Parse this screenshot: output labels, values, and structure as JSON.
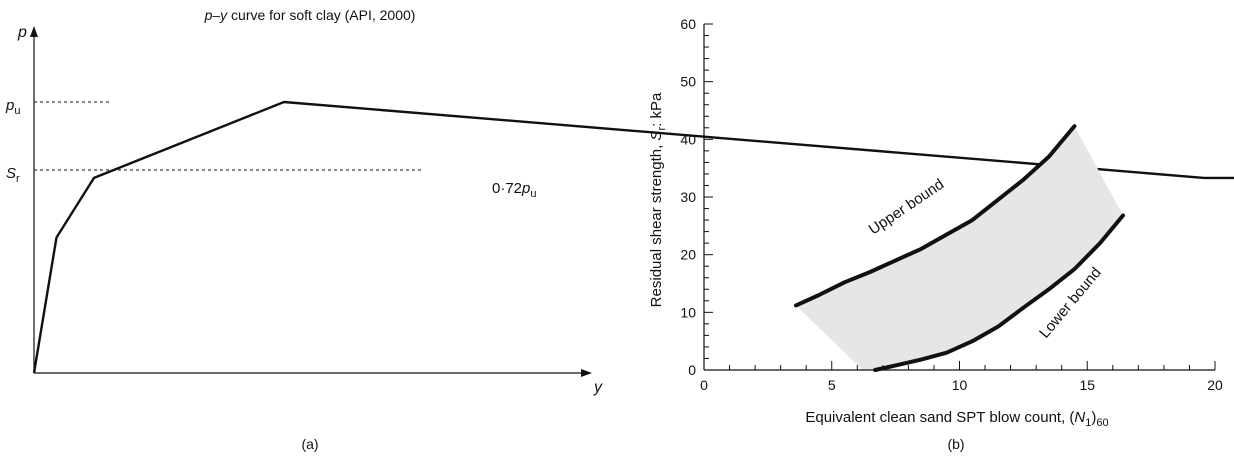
{
  "panel_a": {
    "title": "p–y curve for soft clay (API, 2000)",
    "title_var": "p–y",
    "title_rest": " curve for soft clay (API, 2000)",
    "p_axis_label": "p",
    "y_axis_label": "y",
    "pu_label": "p",
    "pu_sub": "u",
    "sr_label": "S",
    "sr_sub": "r",
    "ratio_label": "0·72",
    "ratio_var": "p",
    "ratio_sub": "u",
    "caption": "(a)"
  },
  "panel_b": {
    "y_label_pre": "Residual shear strength, ",
    "y_label_var": "S",
    "y_label_sub": "r",
    "y_label_post": ": kPa",
    "x_label_pre": "Equivalent clean sand SPT blow count, (",
    "x_label_var": "N",
    "x_label_sub1": "1",
    "x_label_mid": ")",
    "x_label_sub2": "60",
    "upper_label": "Upper bound",
    "lower_label": "Lower bound",
    "caption": "(b)"
  },
  "chart_data": [
    {
      "type": "line",
      "title": "p–y curve for soft clay (API, 2000)",
      "xlabel": "y",
      "ylabel": "p",
      "series": [
        {
          "values": [
            [
              0,
              0
            ],
            [
              0.0045,
              0.5
            ],
            [
              0.012,
              0.72
            ],
            [
              0.05,
              1.0
            ],
            [
              0.234,
              0.72
            ],
            [
              0.312,
              0.72
            ]
          ]
        }
      ],
      "annotations": [
        "pu",
        "Sr",
        "0·72pu"
      ]
    },
    {
      "type": "line",
      "xlabel": "Equivalent clean sand SPT blow count, (N1)60",
      "ylabel": "Residual shear strength, Sr: kPa",
      "xlim": [
        0,
        20
      ],
      "ylim": [
        0,
        60
      ],
      "x_ticks": [
        0,
        5,
        10,
        15,
        20
      ],
      "y_ticks": [
        0,
        10,
        20,
        30,
        40,
        50,
        60
      ],
      "series": [
        {
          "name": "Upper bound",
          "x": [
            3.6,
            4.5,
            5.5,
            6.5,
            7.5,
            8.5,
            9.5,
            10.5,
            11.5,
            12.5,
            13.5,
            14.5
          ],
          "y": [
            11.2,
            13.0,
            15.2,
            17.0,
            19.0,
            21.0,
            23.5,
            26.0,
            29.5,
            33.0,
            37.0,
            42.3
          ]
        },
        {
          "name": "Lower bound",
          "x": [
            6.7,
            7.5,
            8.5,
            9.5,
            10.5,
            11.5,
            12.5,
            13.5,
            14.5,
            15.5,
            16.4
          ],
          "y": [
            0.0,
            0.8,
            1.8,
            3.0,
            5.0,
            7.5,
            10.8,
            14.0,
            17.5,
            22.0,
            26.8
          ]
        }
      ],
      "fill_between": "#e6e6e6"
    }
  ]
}
